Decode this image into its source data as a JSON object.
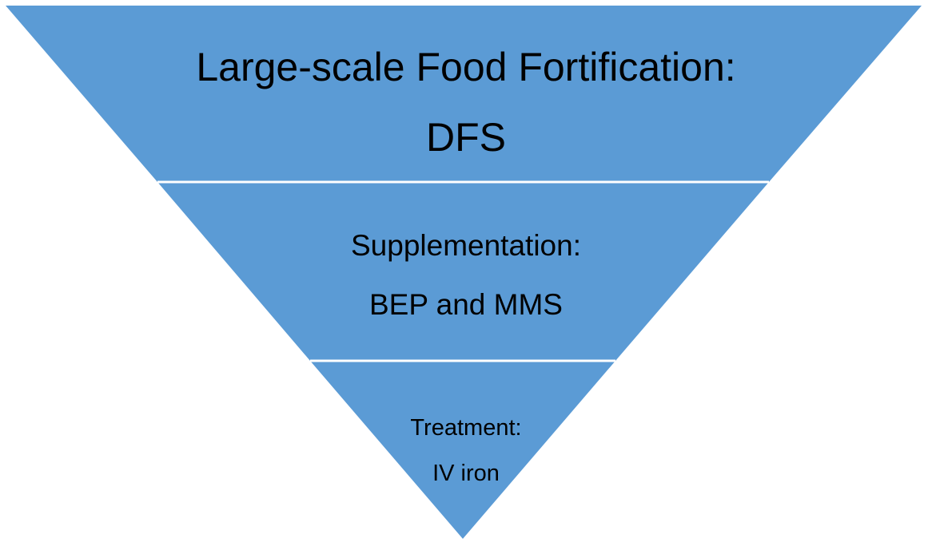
{
  "colors": {
    "fill": "#5b9bd5",
    "divider": "#ffffff",
    "text": "#000000"
  },
  "tiers": [
    {
      "line1": "Large-scale Food Fortification:",
      "line2": "DFS"
    },
    {
      "line1": "Supplementation:",
      "line2": "BEP and MMS"
    },
    {
      "line1": "Treatment:",
      "line2": "IV iron"
    }
  ]
}
